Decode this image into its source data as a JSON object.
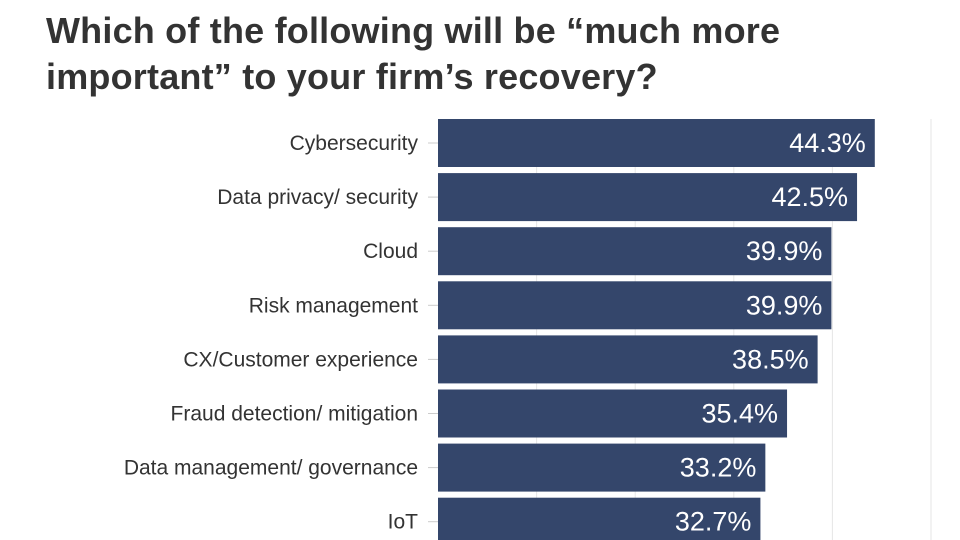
{
  "chart_data": {
    "type": "bar",
    "orientation": "horizontal",
    "title": "Which of the following will be “much more important” to your firm’s recovery?",
    "categories": [
      "Cybersecurity",
      "Data privacy/ security",
      "Cloud",
      "Risk management",
      "CX/Customer experience",
      "Fraud detection/ mitigation",
      "Data management/ governance",
      "IoT"
    ],
    "values": [
      44.3,
      42.5,
      39.9,
      39.9,
      38.5,
      35.4,
      33.2,
      32.7
    ],
    "value_labels": [
      "44.3%",
      "42.5%",
      "39.9%",
      "39.9%",
      "38.5%",
      "35.4%",
      "33.2%",
      "32.7%"
    ],
    "xlim": [
      0,
      50
    ],
    "grid": true,
    "bar_color": "#34466b"
  }
}
